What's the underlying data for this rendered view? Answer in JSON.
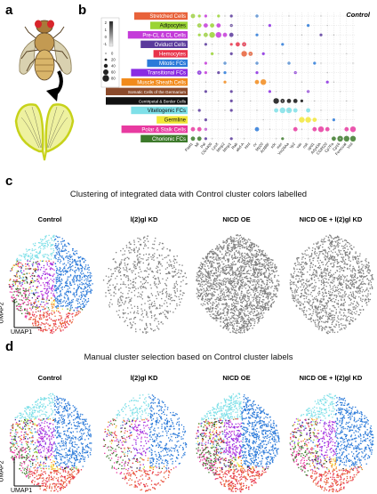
{
  "panels": {
    "a": "a",
    "b": "b",
    "c": "c",
    "d": "d"
  },
  "dotplot": {
    "title": "Control",
    "colorbar_ticks": [
      "2",
      "1",
      "0",
      "-1"
    ],
    "size_legend": [
      "0",
      "20",
      "40",
      "60",
      "80"
    ],
    "clusters": [
      {
        "name": "Stretched Cells",
        "color": "#e8623a"
      },
      {
        "name": "Adipocytes",
        "color": "#9ad434"
      },
      {
        "name": "Pre-CL & CL Cells",
        "color": "#c43bd9"
      },
      {
        "name": "Oviduct Cells",
        "color": "#5a3a9c"
      },
      {
        "name": "Hemocytes",
        "color": "#e8334a"
      },
      {
        "name": "Mitotic FCs",
        "color": "#2b7ad9"
      },
      {
        "name": "Transitional FCs",
        "color": "#8a2be2"
      },
      {
        "name": "Muscle Sheath Cells",
        "color": "#f28b1c"
      },
      {
        "name": "Somatic Cells of the Germarium",
        "color": "#8b4a2b"
      },
      {
        "name": "Centripetal & Border Cells",
        "color": "#111111"
      },
      {
        "name": "Vitellogenic FCs",
        "color": "#7fe0e8"
      },
      {
        "name": "Germline",
        "color": "#f2e838"
      },
      {
        "name": "Polar & Stalk Cells",
        "color": "#e83aa0"
      },
      {
        "name": "Chorionic FCs",
        "color": "#3d7a2b"
      }
    ],
    "genes": [
      "Past1",
      "Mf",
      "Pal",
      "CG4409",
      "LysX",
      "Mmp2",
      "Mmp1",
      "Rab",
      "abd-A",
      "Hml",
      "cv",
      "Mp20",
      "Act88F",
      "sdc",
      "mirr",
      "Vm26Aa",
      "Yp2",
      "vas",
      "osk",
      "upd1",
      "Ady43A",
      "CG8520",
      "Cp7Fa",
      "Cp16",
      "Femcoat",
      "Vml"
    ],
    "dots": [
      [
        0,
        0,
        1,
        2
      ],
      [
        1,
        0,
        1,
        1
      ],
      [
        2,
        0,
        2,
        1
      ],
      [
        4,
        0,
        1,
        1
      ],
      [
        6,
        0,
        3,
        1
      ],
      [
        10,
        0,
        5,
        1
      ],
      [
        1,
        1,
        1,
        2
      ],
      [
        2,
        1,
        2,
        2
      ],
      [
        3,
        1,
        1,
        2
      ],
      [
        4,
        1,
        2,
        2
      ],
      [
        6,
        1,
        3,
        1
      ],
      [
        12,
        1,
        6,
        1
      ],
      [
        18,
        1,
        5,
        1
      ],
      [
        1,
        2,
        1,
        1
      ],
      [
        2,
        2,
        1,
        2
      ],
      [
        3,
        2,
        1,
        3
      ],
      [
        4,
        2,
        2,
        3
      ],
      [
        5,
        2,
        2,
        2
      ],
      [
        6,
        2,
        3,
        2
      ],
      [
        10,
        2,
        5,
        1
      ],
      [
        20,
        2,
        3,
        1
      ],
      [
        2,
        3,
        3,
        1
      ],
      [
        6,
        3,
        4,
        1
      ],
      [
        7,
        3,
        4,
        2
      ],
      [
        8,
        3,
        4,
        2
      ],
      [
        14,
        3,
        5,
        1
      ],
      [
        3,
        4,
        1,
        1
      ],
      [
        6,
        4,
        3,
        1
      ],
      [
        8,
        4,
        0,
        3
      ],
      [
        9,
        4,
        0,
        2
      ],
      [
        11,
        4,
        6,
        1
      ],
      [
        2,
        5,
        2,
        1
      ],
      [
        5,
        5,
        5,
        1
      ],
      [
        10,
        5,
        5,
        1
      ],
      [
        15,
        5,
        5,
        1
      ],
      [
        19,
        5,
        5,
        1
      ],
      [
        1,
        6,
        6,
        2
      ],
      [
        2,
        6,
        2,
        1
      ],
      [
        4,
        6,
        3,
        1
      ],
      [
        5,
        6,
        5,
        1
      ],
      [
        10,
        6,
        6,
        1
      ],
      [
        16,
        6,
        6,
        1
      ],
      [
        10,
        7,
        7,
        2
      ],
      [
        11,
        7,
        7,
        3
      ],
      [
        5,
        7,
        7,
        1
      ],
      [
        21,
        7,
        6,
        1
      ],
      [
        2,
        8,
        3,
        1
      ],
      [
        6,
        8,
        3,
        1
      ],
      [
        12,
        8,
        6,
        1
      ],
      [
        18,
        8,
        6,
        1
      ],
      [
        6,
        9,
        3,
        1
      ],
      [
        13,
        9,
        9,
        3
      ],
      [
        14,
        9,
        9,
        2
      ],
      [
        15,
        9,
        9,
        2
      ],
      [
        16,
        9,
        9,
        2
      ],
      [
        17,
        9,
        9,
        1
      ],
      [
        1,
        10,
        3,
        1
      ],
      [
        6,
        10,
        3,
        1
      ],
      [
        13,
        10,
        10,
        2
      ],
      [
        14,
        10,
        10,
        3
      ],
      [
        15,
        10,
        10,
        3
      ],
      [
        16,
        10,
        10,
        2
      ],
      [
        18,
        10,
        10,
        2
      ],
      [
        2,
        11,
        3,
        1
      ],
      [
        17,
        11,
        11,
        3
      ],
      [
        18,
        11,
        11,
        3
      ],
      [
        19,
        11,
        11,
        2
      ],
      [
        22,
        11,
        5,
        1
      ],
      [
        0,
        12,
        12,
        2
      ],
      [
        1,
        12,
        12,
        2
      ],
      [
        2,
        12,
        2,
        1
      ],
      [
        10,
        12,
        5,
        2
      ],
      [
        16,
        12,
        12,
        2
      ],
      [
        19,
        12,
        12,
        2
      ],
      [
        20,
        12,
        12,
        3
      ],
      [
        21,
        12,
        12,
        2
      ],
      [
        24,
        12,
        12,
        2
      ],
      [
        25,
        12,
        12,
        3
      ],
      [
        0,
        13,
        13,
        2
      ],
      [
        1,
        13,
        13,
        2
      ],
      [
        2,
        13,
        3,
        1
      ],
      [
        6,
        13,
        3,
        1
      ],
      [
        14,
        13,
        13,
        1
      ],
      [
        22,
        13,
        13,
        2
      ],
      [
        23,
        13,
        13,
        3
      ],
      [
        24,
        13,
        13,
        3
      ],
      [
        25,
        13,
        13,
        3
      ]
    ]
  },
  "section_c": {
    "title": "Clustering of integrated data with Control cluster colors labelled",
    "plots": [
      "Control",
      "l(2)gl KD",
      "NICD OE",
      "NICD OE + l(2)gl KD"
    ],
    "ylabel": "UMAP2",
    "xlabel": "UMAP1"
  },
  "section_d": {
    "title": "Manual cluster selection based on Control cluster labels",
    "plots": [
      "Control",
      "l(2)gl KD",
      "NICD OE",
      "NICD OE + l(2)gl KD"
    ],
    "ylabel": "UMAP2",
    "xlabel": "UMAP1"
  }
}
